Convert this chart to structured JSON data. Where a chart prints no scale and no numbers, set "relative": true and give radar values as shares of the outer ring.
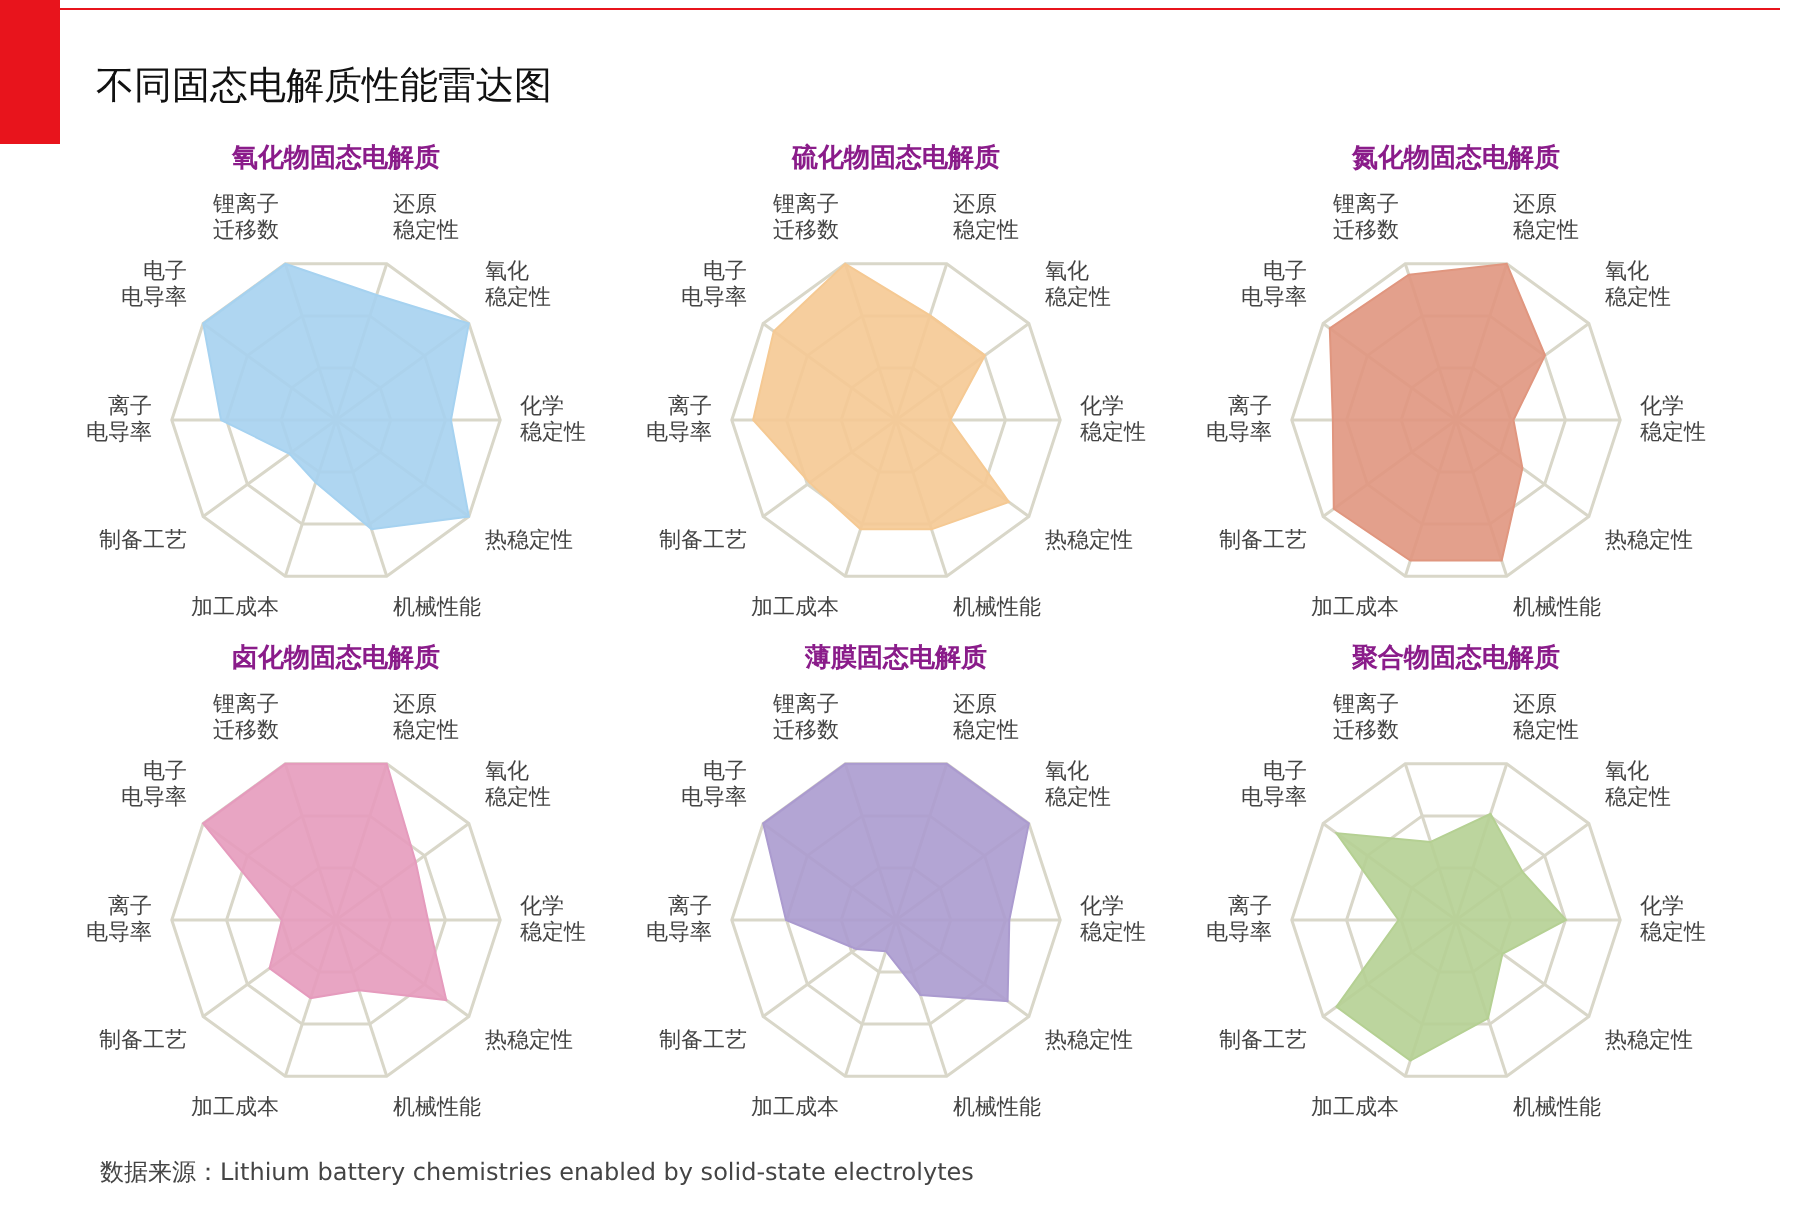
{
  "chart_data": [
    {
      "type": "other",
      "title": "不同固态电解质性能雷达图"
    },
    {
      "type": "radar",
      "title": "氧化物固态电解质",
      "categories": [
        "锂离子迁移数",
        "还原稳定性",
        "氧化稳定性",
        "化学稳定性",
        "热稳定性",
        "机械性能",
        "加工成本",
        "制备工艺",
        "离子电导率",
        "电子电导率"
      ],
      "relative": true,
      "grid": true,
      "legend": false,
      "series": [
        {
          "color": "#a6d2f0",
          "values": [
            1,
            0.8,
            1,
            0.7,
            1,
            0.7,
            0.4,
            0.35,
            0.7,
            1
          ]
        }
      ]
    },
    {
      "type": "radar",
      "title": "硫化物固态电解质",
      "categories": [
        "锂离子迁移数",
        "还原稳定性",
        "氧化稳定性",
        "化学稳定性",
        "热稳定性",
        "机械性能",
        "加工成本",
        "制备工艺",
        "离子电导率",
        "电子电导率"
      ],
      "relative": true,
      "grid": true,
      "legend": false,
      "series": [
        {
          "color": "#f5c993",
          "values": [
            1,
            0.67,
            0.67,
            0.33,
            0.85,
            0.7,
            0.7,
            0.65,
            0.87,
            0.92
          ]
        }
      ]
    },
    {
      "type": "radar",
      "title": "氮化物固态电解质",
      "categories": [
        "锂离子迁移数",
        "还原稳定性",
        "氧化稳定性",
        "化学稳定性",
        "热稳定性",
        "机械性能",
        "加工成本",
        "制备工艺",
        "离子电导率",
        "电子电导率"
      ],
      "relative": true,
      "grid": true,
      "legend": false,
      "series": [
        {
          "color": "#e0967f",
          "values": [
            0.93,
            1,
            0.67,
            0.35,
            0.5,
            0.9,
            0.9,
            0.92,
            0.75,
            0.95
          ]
        }
      ]
    },
    {
      "type": "radar",
      "title": "卤化物固态电解质",
      "categories": [
        "锂离子迁移数",
        "还原稳定性",
        "氧化稳定性",
        "化学稳定性",
        "热稳定性",
        "机械性能",
        "加工成本",
        "制备工艺",
        "离子电导率",
        "电子电导率"
      ],
      "relative": true,
      "grid": true,
      "legend": false,
      "series": [
        {
          "color": "#e59bbd",
          "values": [
            1,
            1,
            0.6,
            0.56,
            0.83,
            0.45,
            0.5,
            0.5,
            0.33,
            1
          ]
        }
      ]
    },
    {
      "type": "radar",
      "title": "薄膜固态电解质",
      "categories": [
        "锂离子迁移数",
        "还原稳定性",
        "氧化稳定性",
        "化学稳定性",
        "热稳定性",
        "机械性能",
        "加工成本",
        "制备工艺",
        "离子电导率",
        "电子电导率"
      ],
      "relative": true,
      "grid": true,
      "legend": false,
      "series": [
        {
          "color": "#ab9bcf",
          "values": [
            1,
            1,
            1,
            0.69,
            0.84,
            0.48,
            0.2,
            0.3,
            0.67,
            1
          ]
        }
      ]
    },
    {
      "type": "radar",
      "title": "聚合物固态电解质",
      "categories": [
        "锂离子迁移数",
        "还原稳定性",
        "氧化稳定性",
        "化学稳定性",
        "热稳定性",
        "机械性能",
        "加工成本",
        "制备工艺",
        "离子电导率",
        "电子电导率"
      ],
      "relative": true,
      "grid": true,
      "legend": false,
      "series": [
        {
          "color": "#b5d093",
          "values": [
            0.5,
            0.68,
            0.5,
            0.67,
            0.35,
            0.63,
            0.9,
            0.9,
            0.35,
            0.9
          ]
        }
      ]
    },
    {
      "type": "other",
      "annotations": [
        "数据来源：Lithium battery chemistries enabled by solid-state electrolytes"
      ]
    }
  ]
}
